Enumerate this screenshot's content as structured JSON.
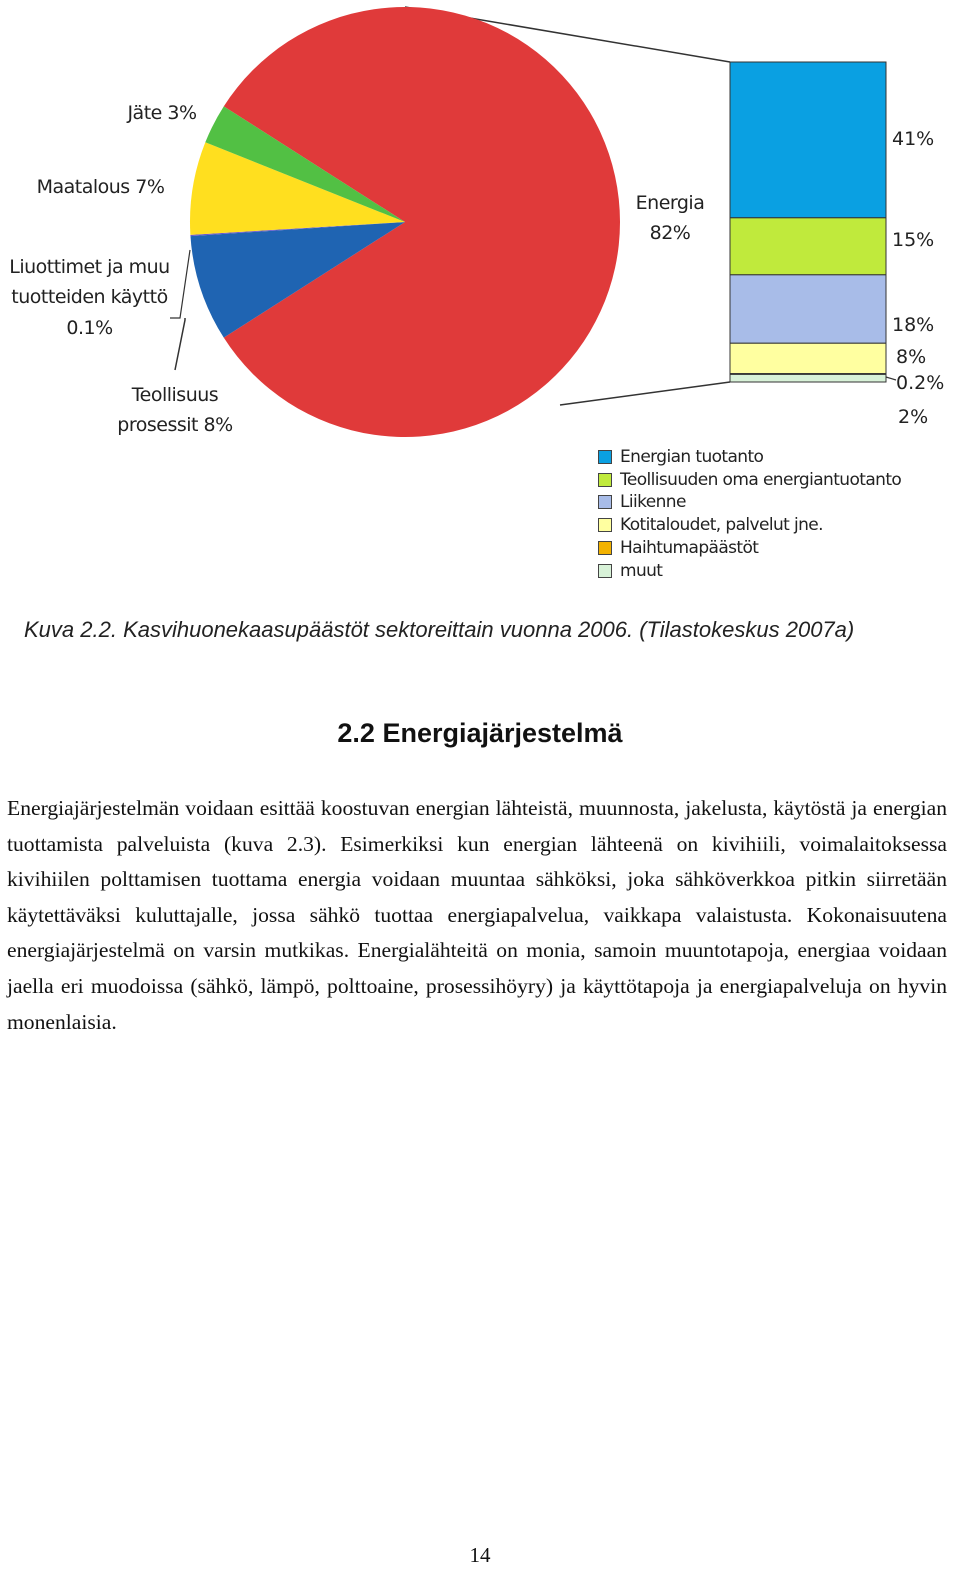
{
  "chart_data": {
    "type": "pie",
    "categories": [
      "Energia",
      "Teollisuus prosessit",
      "Liuottimet ja muu tuotteiden käyttö",
      "Maatalous",
      "Jäte"
    ],
    "values": [
      82,
      8,
      0.1,
      7,
      3
    ],
    "value_labels": [
      "82%",
      "8%",
      "0.1%",
      "7%",
      "3%"
    ],
    "colors": [
      "#e03a3a",
      "#1f64b2",
      "#6a5acd",
      "#ffdf1f",
      "#52c044"
    ],
    "bar": {
      "categories": [
        "Energian tuotanto",
        "Teollisuuden oma energiantuotanto",
        "Liikenne",
        "Kotitaloudet, palvelut jne.",
        "Haihtumapäästöt",
        "muut"
      ],
      "values": [
        41,
        15,
        18,
        8,
        0.2,
        2
      ],
      "value_labels": [
        "41%",
        "15%",
        "18%",
        "8%",
        "0.2%",
        "2%"
      ],
      "colors": [
        "#0aa0e2",
        "#c0ea3c",
        "#a8bce8",
        "#ffffa0",
        "#f2b200",
        "#d8f2d8"
      ]
    }
  },
  "caption": "Kuva 2.2. Kasvihuonekaasupäästöt sektoreittain vuonna 2006. (Tilastokeskus 2007a)",
  "heading": "2.2 Energiajärjestelmä",
  "paragraph": "Energiajärjestelmän voidaan esittää koostuvan energian lähteistä, muunnosta, jakelusta, käytöstä ja energian tuottamista palveluista (kuva 2.3). Esimerkiksi kun energian lähteenä on kivihiili, voimalaitoksessa kivihiilen polttamisen tuottama energia voidaan muuntaa sähköksi, joka sähköverkkoa pitkin siirretään käytettäväksi kuluttajalle, jossa sähkö tuottaa energiapalvelua, vaikkapa valaistusta. Kokonaisuutena energiajärjestelmä on varsin mutkikas. Energialähteitä on monia, samoin muuntotapoja, energiaa voidaan jaella eri muodoissa (sähkö, lämpö, polttoaine, prosessihöyry) ja käyttötapoja ja energiapalveluja on hyvin monenlaisia.",
  "page_number": "14"
}
